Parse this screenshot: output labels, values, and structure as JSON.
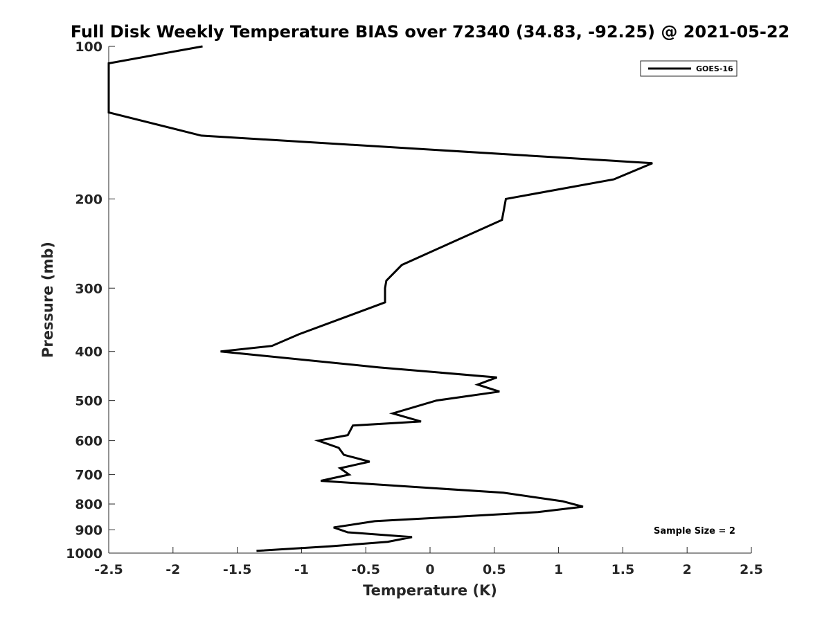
{
  "chart_data": {
    "type": "line",
    "title": "Full Disk Weekly Temperature BIAS over 72340 (34.83, -92.25) @ 2021-05-22",
    "xlabel": "Temperature (K)",
    "ylabel": "Pressure (mb)",
    "xlim": [
      -2.5,
      2.5
    ],
    "ylim": [
      100,
      1000
    ],
    "yscale": "log",
    "y_reversed": true,
    "xticks": [
      -2.5,
      -2,
      -1.5,
      -1,
      -0.5,
      0,
      0.5,
      1,
      1.5,
      2,
      2.5
    ],
    "xtick_labels": [
      "-2.5",
      "-2",
      "-1.5",
      "-1",
      "-0.5",
      "0",
      "0.5",
      "1",
      "1.5",
      "2",
      "2.5"
    ],
    "yticks": [
      100,
      200,
      300,
      400,
      500,
      600,
      700,
      800,
      900,
      1000
    ],
    "ytick_labels": [
      "100",
      "200",
      "300",
      "400",
      "500",
      "600",
      "700",
      "800",
      "900",
      "1000"
    ],
    "grid": false,
    "legend_position": "top-right",
    "annotation": "Sample Size = 2",
    "line_color": "#000000",
    "series": [
      {
        "name": "GOES-16",
        "x": [
          -1.77,
          -2.5,
          -2.5,
          -1.78,
          1.73,
          1.43,
          0.59,
          0.56,
          0.15,
          -0.22,
          -0.34,
          -0.35,
          -0.35,
          -1.02,
          -1.23,
          -1.63,
          -0.4,
          0.52,
          0.37,
          0.54,
          0.05,
          -0.29,
          -0.07,
          -0.6,
          -0.64,
          -0.87,
          -0.71,
          -0.67,
          -0.47,
          -0.7,
          -0.63,
          -0.85,
          0.57,
          1.03,
          1.19,
          0.84,
          0.13,
          -0.43,
          -0.75,
          -0.64,
          -0.14,
          -0.33,
          -0.78,
          -1.35
        ],
        "y": [
          100,
          108,
          135,
          150,
          170,
          183,
          200,
          220,
          245,
          270,
          290,
          300,
          320,
          370,
          390,
          400,
          430,
          450,
          465,
          480,
          500,
          530,
          550,
          560,
          585,
          600,
          620,
          640,
          660,
          680,
          700,
          720,
          760,
          790,
          810,
          830,
          850,
          865,
          890,
          910,
          930,
          950,
          970,
          990
        ]
      }
    ]
  }
}
